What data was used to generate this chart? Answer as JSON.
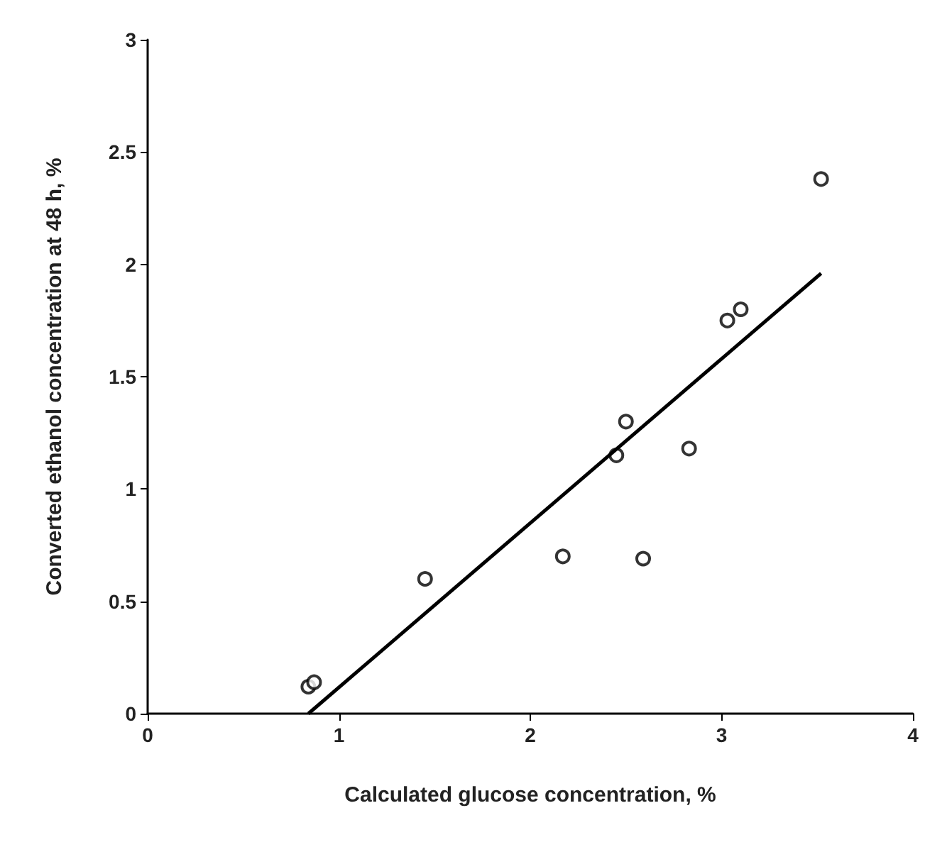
{
  "chart_data": {
    "type": "scatter",
    "xlabel": "Calculated glucose concentration, %",
    "ylabel": "Converted ethanol concentration at 48 h, %",
    "xlim": [
      0,
      4
    ],
    "xticks": [
      0,
      1,
      2,
      3,
      4
    ],
    "ylim": [
      0,
      3
    ],
    "yticks": [
      0,
      0.5,
      1,
      1.5,
      2,
      2.5,
      3
    ],
    "grid": false,
    "series": [
      {
        "type": "scatter",
        "marker": "circle",
        "color": "#000000",
        "x": [
          0.84,
          0.87,
          1.45,
          2.17,
          2.45,
          2.5,
          2.59,
          2.83,
          3.03,
          3.1,
          3.52
        ],
        "values": [
          0.12,
          0.14,
          0.6,
          0.7,
          1.15,
          1.3,
          0.69,
          1.18,
          1.75,
          1.8,
          2.38
        ]
      },
      {
        "type": "line",
        "marker": "none",
        "line_style": "solid",
        "color": "#000000",
        "x": [
          0.84,
          3.52
        ],
        "values": [
          0,
          1.96
        ]
      }
    ]
  }
}
